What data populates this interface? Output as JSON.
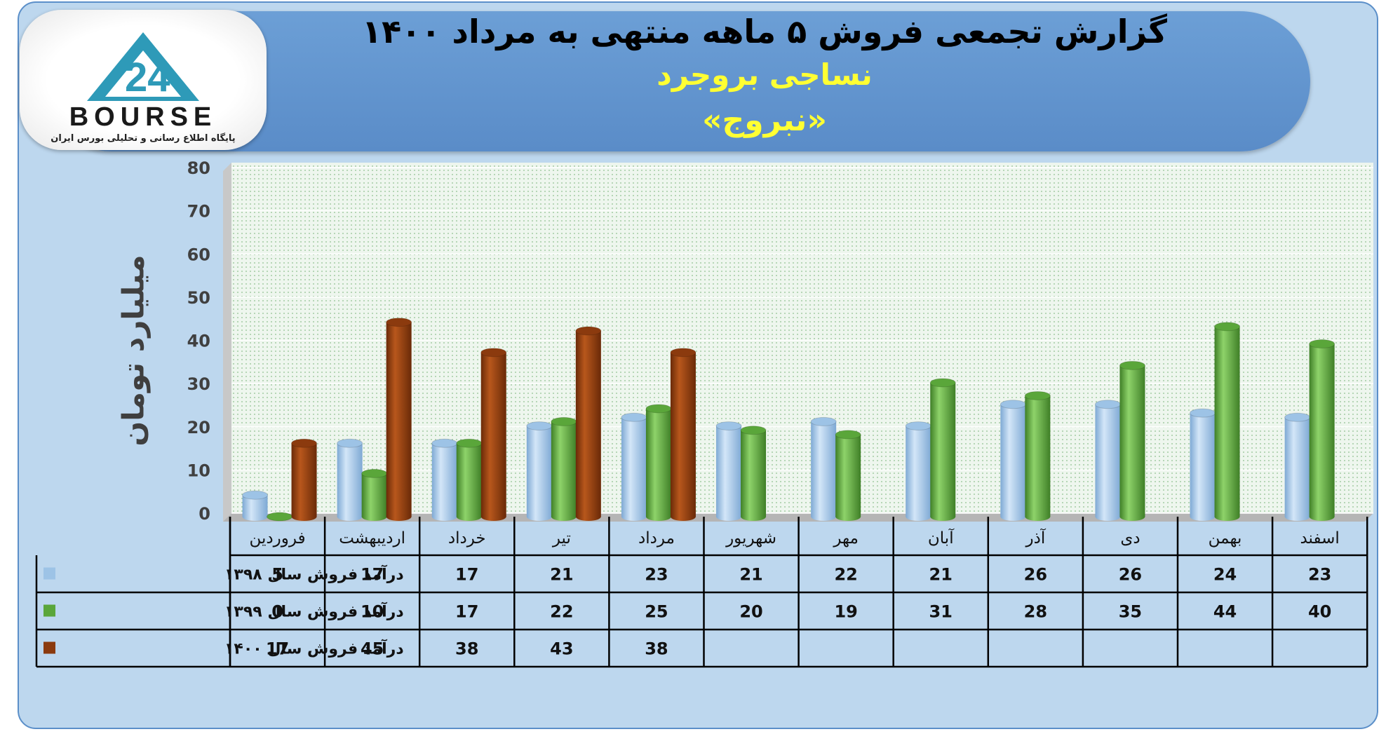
{
  "colors": {
    "s1398": "#9dc3e6",
    "s1399": "#5aa63a",
    "s1400": "#8b3a0e"
  },
  "logo": {
    "word": "BOURSE",
    "subtitle": "پایگاه اطلاع رسانی و تحلیلی بورس ایران",
    "icon": "bourse-logo-triangle"
  },
  "chart_data": {
    "type": "bar",
    "title": "گزارش تجمعی فروش ۵ ماهه منتهی به مرداد ۱۴۰۰",
    "subtitle": "نساجی بروجرد",
    "symbol": "«نبروج»",
    "ylabel": "میلیارد تومان",
    "ylim": [
      0,
      80
    ],
    "yticks": [
      "0",
      "10",
      "20",
      "30",
      "40",
      "50",
      "60",
      "70",
      "80"
    ],
    "grid": true,
    "legend": "table-left",
    "categories": [
      "فروردین",
      "اردیبهشت",
      "خرداد",
      "تیر",
      "مرداد",
      "شهریور",
      "مهر",
      "آبان",
      "آذر",
      "دی",
      "بهمن",
      "اسفند"
    ],
    "series": [
      {
        "name": "درآمد فروش سال ۱۳۹۸",
        "values": [
          5,
          17,
          17,
          21,
          23,
          21,
          22,
          21,
          26,
          26,
          24,
          23
        ]
      },
      {
        "name": "درآمد فروش سال ۱۳۹۹",
        "values": [
          0,
          10,
          17,
          22,
          25,
          20,
          19,
          31,
          28,
          35,
          44,
          40
        ]
      },
      {
        "name": "درآمد فروش سال ۱۴۰۰",
        "values": [
          17,
          45,
          38,
          43,
          38,
          null,
          null,
          null,
          null,
          null,
          null,
          null
        ]
      }
    ]
  }
}
